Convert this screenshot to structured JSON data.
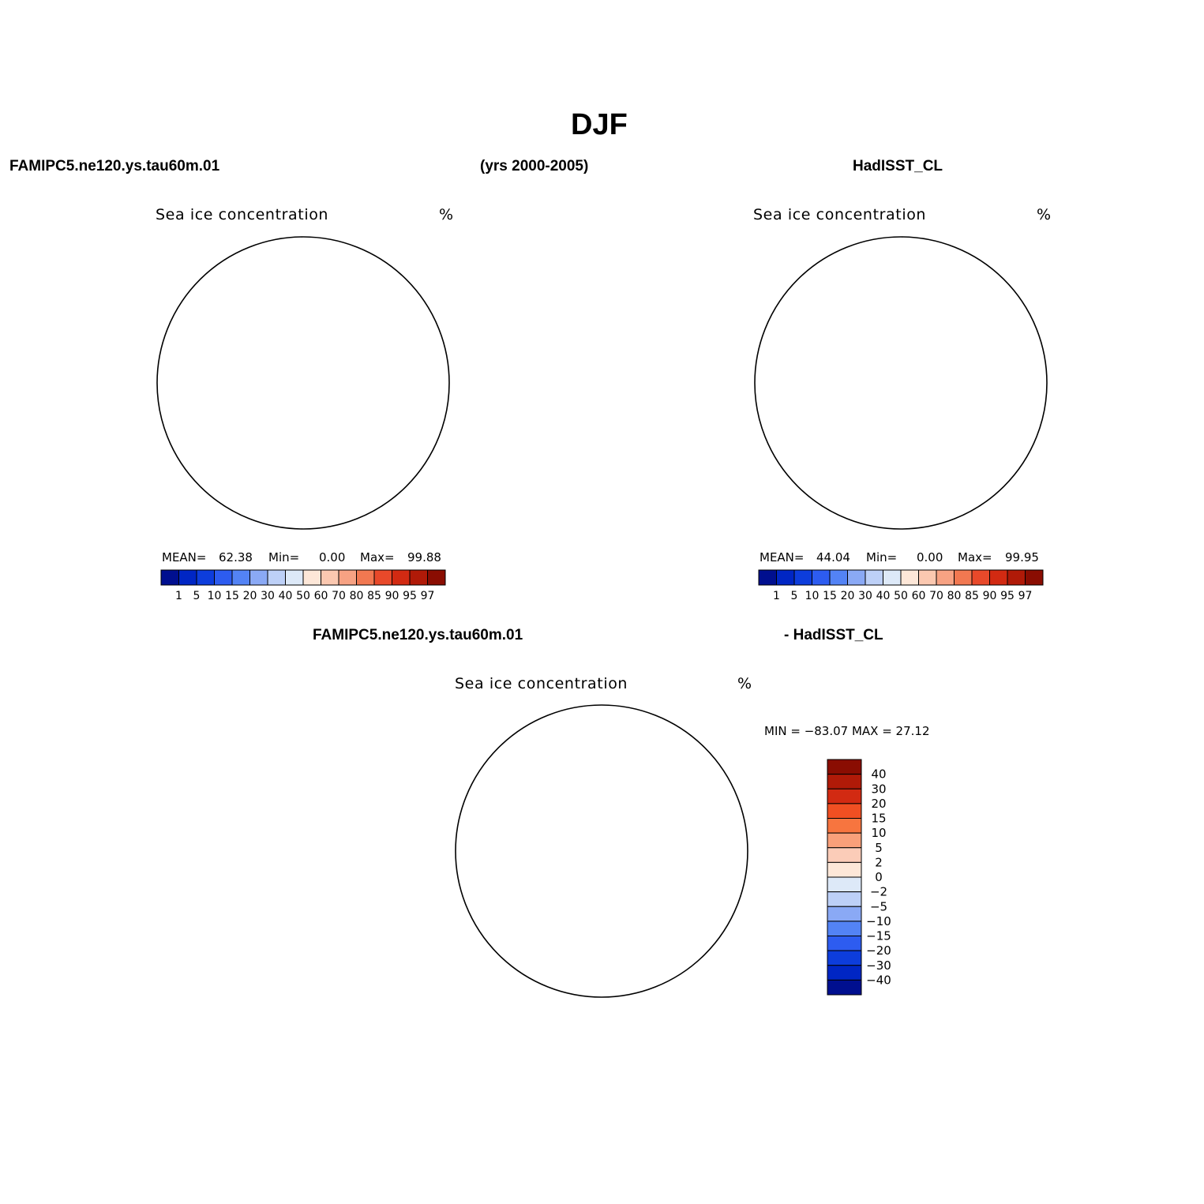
{
  "figure": {
    "title": "DJF",
    "header_left": "FAMIPC5.ne120.ys.tau60m.01",
    "header_center": "(yrs 2000-2005)",
    "header_right": "HadISST_CL",
    "diff_left": "FAMIPC5.ne120.ys.tau60m.01",
    "diff_right": "- HadISST_CL"
  },
  "panels": [
    {
      "id": "model",
      "title": "Sea ice concentration",
      "units": "%",
      "mean_label": "MEAN=",
      "mean": "62.38",
      "min_label": "Min=",
      "min": "0.00",
      "max_label": "Max=",
      "max": "99.88"
    },
    {
      "id": "obs",
      "title": "Sea ice concentration",
      "units": "%",
      "mean_label": "MEAN=",
      "mean": "44.04",
      "min_label": "Min=",
      "min": "0.00",
      "max_label": "Max=",
      "max": "99.95"
    },
    {
      "id": "diff",
      "title": "Sea ice concentration",
      "units": "%",
      "minmax_text": "MIN = −83.07  MAX =   27.12"
    }
  ],
  "colorbar_main": {
    "colors": [
      "#000f8f",
      "#0026c4",
      "#0d3ddc",
      "#2d5cf0",
      "#5383f5",
      "#8aa9f5",
      "#bdd0f7",
      "#dde9f8",
      "#fde7d8",
      "#fbc8b0",
      "#f7a283",
      "#f17851",
      "#e8492a",
      "#d22a12",
      "#b01a08",
      "#8a0d02"
    ],
    "labels": [
      "1",
      "5",
      "10",
      "15",
      "20",
      "30",
      "40",
      "50",
      "60",
      "70",
      "80",
      "85",
      "90",
      "95",
      "97"
    ]
  },
  "colorbar_diff": {
    "colors": [
      "#8a0d02",
      "#b01a08",
      "#d22a12",
      "#f04f22",
      "#f7753f",
      "#f9a07a",
      "#fbccb8",
      "#fde7d8",
      "#dde9f8",
      "#bdd0f7",
      "#8aa9f5",
      "#5383f5",
      "#2d5cf0",
      "#0d3ddc",
      "#0026c4",
      "#000f8f"
    ],
    "labels": [
      "40",
      "30",
      "20",
      "15",
      "10",
      "5",
      "2",
      "0",
      "−2",
      "−5",
      "−10",
      "−15",
      "−20",
      "−30",
      "−40"
    ]
  }
}
